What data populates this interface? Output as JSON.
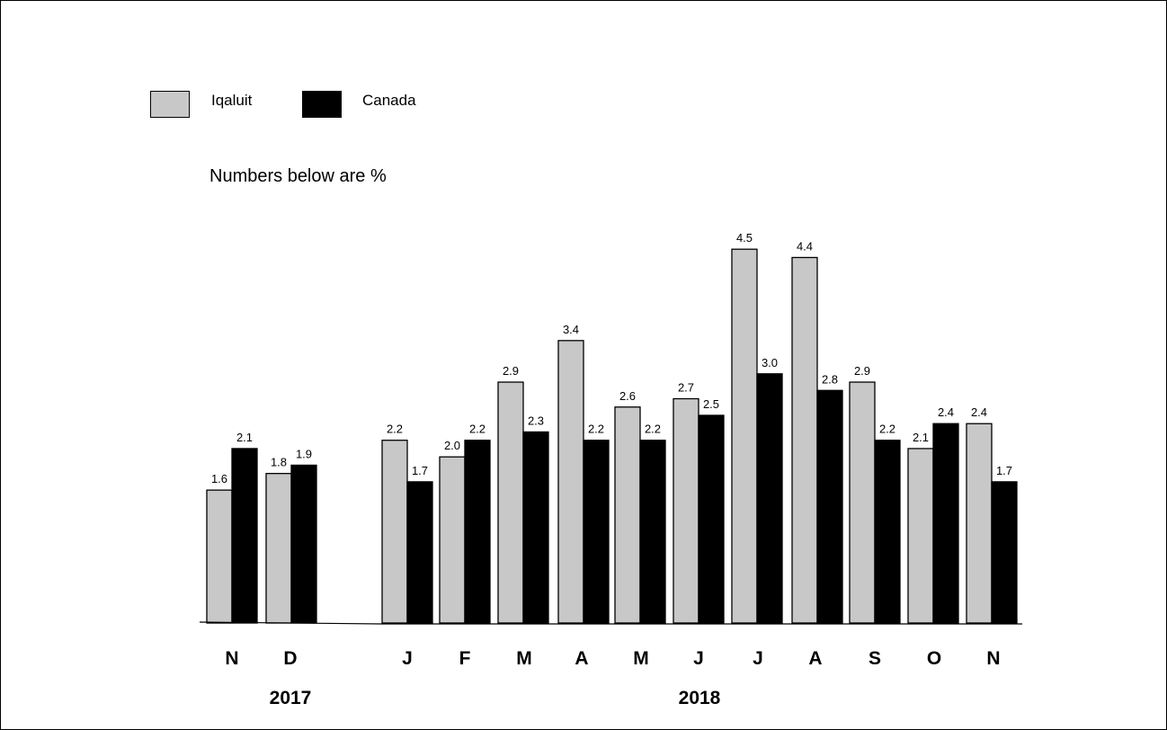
{
  "chart_data": {
    "type": "bar",
    "note": "Numbers below are %",
    "categories": [
      "N",
      "D",
      "J",
      "F",
      "M",
      "A",
      "M",
      "J",
      "J",
      "A",
      "S",
      "O",
      "N"
    ],
    "years": [
      {
        "label": "2017",
        "months": 2
      },
      {
        "label": "2018",
        "months": 11
      }
    ],
    "series": [
      {
        "name": "Iqaluit",
        "color": "#c8c8c8",
        "values": [
          1.6,
          1.8,
          2.2,
          2.0,
          2.9,
          3.4,
          2.6,
          2.7,
          4.5,
          4.4,
          2.9,
          2.1,
          2.4
        ]
      },
      {
        "name": "Canada",
        "color": "#000000",
        "values": [
          2.1,
          1.9,
          1.7,
          2.2,
          2.3,
          2.2,
          2.2,
          2.5,
          3.0,
          2.8,
          2.2,
          2.4,
          1.7
        ]
      }
    ],
    "ylim": [
      0,
      4.5
    ],
    "legend_position": "top-left",
    "grid": false
  }
}
